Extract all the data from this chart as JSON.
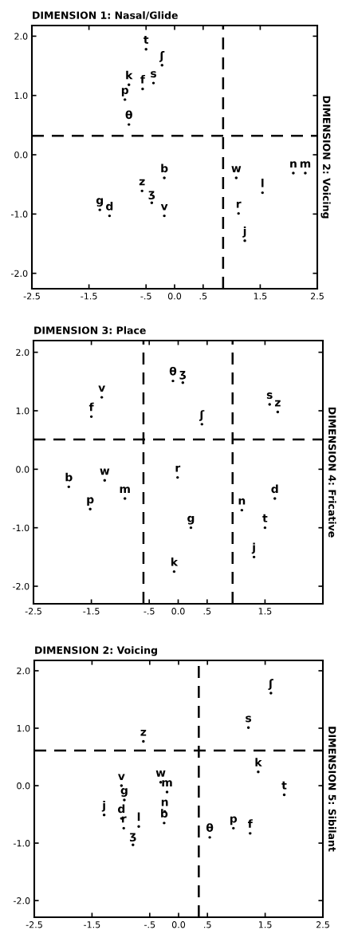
{
  "chart_data": [
    {
      "type": "scatter",
      "title": "DIMENSION 1: Nasal/Glide",
      "ylabel": "DIMENSION 2: Voicing",
      "marker": "circle",
      "series": [
        {
          "color": "#000000",
          "x": [
            -0.5,
            -0.22,
            -0.8,
            -0.56,
            -0.37,
            -0.87,
            -0.8,
            -0.18,
            -0.57,
            -0.4,
            -0.18,
            -1.31,
            -1.14,
            1.08,
            1.54,
            1.12,
            1.23,
            2.08,
            2.29
          ],
          "values": [
            1.78,
            1.51,
            1.18,
            1.11,
            1.21,
            0.93,
            0.51,
            -0.39,
            -0.61,
            -0.81,
            -1.03,
            -0.93,
            -1.03,
            -0.39,
            -0.64,
            -0.99,
            -1.45,
            -0.31,
            -0.31
          ],
          "value_labels": [
            "t",
            "ʃ",
            "k",
            "f",
            "s",
            "p",
            "θ",
            "b",
            "z",
            "ʒ",
            "v",
            "g",
            "d",
            "w",
            "l",
            "r",
            "j",
            "n",
            "m"
          ]
        }
      ],
      "ref_lines": [
        {
          "axis": "x",
          "value": 0.85,
          "color": "#000000",
          "line_style": "dashed"
        },
        {
          "axis": "y",
          "value": 0.32,
          "color": "#000000",
          "line_style": "dashed"
        }
      ],
      "xlim": [
        -2.5,
        2.5
      ],
      "ylim": [
        -2.26,
        2.18
      ],
      "xticks": [
        {
          "value": -2.5,
          "label": "-2.5"
        },
        {
          "value": -1.5,
          "label": "-1.5"
        },
        {
          "value": -0.5,
          "label": "-.5"
        },
        {
          "value": 0,
          "label": "0.0"
        },
        {
          "value": 0.5,
          "label": ".5"
        },
        {
          "value": 1.5,
          "label": "1.5"
        },
        {
          "value": 2.5,
          "label": "2.5"
        }
      ],
      "yticks": [
        {
          "value": 2,
          "label": "2.0"
        },
        {
          "value": 1,
          "label": "1.0"
        },
        {
          "value": 0,
          "label": "0.0"
        },
        {
          "value": -1,
          "label": "-1.0"
        },
        {
          "value": -2,
          "label": "-2.0"
        }
      ]
    },
    {
      "type": "scatter",
      "title": "DIMENSION 3: Place",
      "ylabel": "DIMENSION 4: Fricative",
      "marker": "circle",
      "series": [
        {
          "color": "#000000",
          "x": [
            -1.32,
            -1.5,
            -0.09,
            0.08,
            0.41,
            1.58,
            1.72,
            -1.89,
            -1.27,
            -0.92,
            -1.52,
            -0.01,
            0.22,
            -0.07,
            1.1,
            1.67,
            1.5,
            1.31
          ],
          "values": [
            1.23,
            0.9,
            1.51,
            1.48,
            0.77,
            1.11,
            0.98,
            -0.3,
            -0.19,
            -0.5,
            -0.68,
            -0.14,
            -1.0,
            -1.75,
            -0.7,
            -0.5,
            -1.0,
            -1.5
          ],
          "value_labels": [
            "v",
            "f",
            "θ",
            "ʒ",
            "ʃ",
            "s",
            "z",
            "b",
            "w",
            "m",
            "p",
            "r",
            "g",
            "k",
            "n",
            "d",
            "t",
            "j"
          ]
        }
      ],
      "ref_lines": [
        {
          "axis": "x",
          "value": -0.6,
          "color": "#000000",
          "line_style": "dashed"
        },
        {
          "axis": "x",
          "value": 0.94,
          "color": "#000000",
          "line_style": "dashed"
        },
        {
          "axis": "y",
          "value": 0.51,
          "color": "#000000",
          "line_style": "dashed"
        }
      ],
      "xlim": [
        -2.5,
        2.5
      ],
      "ylim": [
        -2.3,
        2.2
      ],
      "xticks": [
        {
          "value": -2.5,
          "label": "-2.5"
        },
        {
          "value": -1.5,
          "label": "-1.5"
        },
        {
          "value": -0.5,
          "label": "-.5"
        },
        {
          "value": 0,
          "label": "0.0"
        },
        {
          "value": 0.5,
          "label": ".5"
        },
        {
          "value": 1.5,
          "label": "1.5"
        }
      ],
      "yticks": [
        {
          "value": 2,
          "label": "2.0"
        },
        {
          "value": 1,
          "label": "1.0"
        },
        {
          "value": 0,
          "label": "0.0"
        },
        {
          "value": -1,
          "label": "-1.0"
        },
        {
          "value": -2,
          "label": "-2.0"
        }
      ]
    },
    {
      "type": "scatter",
      "title": "DIMENSION 2: Voicing",
      "ylabel": "DIMENSION 5: Sibilant",
      "marker": "circle",
      "series": [
        {
          "color": "#000000",
          "x": [
            1.6,
            1.21,
            -0.61,
            1.38,
            1.83,
            -0.99,
            -0.31,
            -0.2,
            -0.94,
            -0.24,
            -1.29,
            -0.99,
            -0.25,
            -0.95,
            -0.69,
            -0.79,
            0.54,
            0.95,
            1.24
          ],
          "values": [
            1.61,
            1.01,
            0.77,
            0.24,
            -0.16,
            0.0,
            0.06,
            -0.11,
            -0.25,
            -0.45,
            -0.51,
            -0.57,
            -0.65,
            -0.74,
            -0.71,
            -1.03,
            -0.9,
            -0.74,
            -0.83
          ],
          "value_labels": [
            "ʃ",
            "s",
            "z",
            "k",
            "t",
            "v",
            "w",
            "m",
            "g",
            "n",
            "j",
            "d",
            "b",
            "r",
            "l",
            "ʒ",
            "θ",
            "p",
            "f"
          ]
        }
      ],
      "ref_lines": [
        {
          "axis": "x",
          "value": 0.35,
          "color": "#000000",
          "line_style": "dashed"
        },
        {
          "axis": "y",
          "value": 0.61,
          "color": "#000000",
          "line_style": "dashed"
        }
      ],
      "xlim": [
        -2.5,
        2.5
      ],
      "ylim": [
        -2.29,
        2.18
      ],
      "xticks": [
        {
          "value": -2.5,
          "label": "-2.5"
        },
        {
          "value": -1.5,
          "label": "-1.5"
        },
        {
          "value": -0.5,
          "label": "-.5"
        },
        {
          "value": 0,
          "label": "0.0"
        },
        {
          "value": 0.5,
          "label": ".5"
        },
        {
          "value": 1.5,
          "label": "1.5"
        },
        {
          "value": 2.5,
          "label": "2.5"
        }
      ],
      "yticks": [
        {
          "value": 2,
          "label": "2.0"
        },
        {
          "value": 1,
          "label": "1.0"
        },
        {
          "value": 0,
          "label": "0.0"
        },
        {
          "value": -1,
          "label": "-1.0"
        },
        {
          "value": -2,
          "label": "-2.0"
        }
      ]
    }
  ]
}
